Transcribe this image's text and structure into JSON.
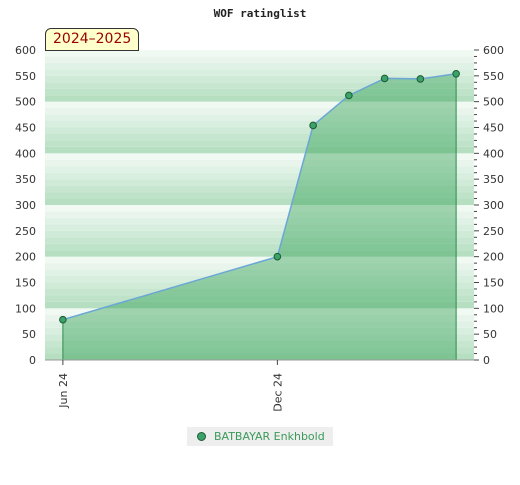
{
  "chart_data": {
    "type": "area",
    "title": "WOF ratinglist",
    "badge": "2024–2025",
    "y_ticks": [
      "0",
      "50",
      "100",
      "150",
      "200",
      "250",
      "300",
      "350",
      "400",
      "450",
      "500",
      "550",
      "600"
    ],
    "ylim": [
      0,
      600
    ],
    "x_ticks": [
      {
        "label": "Jun 24",
        "month": 0
      },
      {
        "label": "Dec 24",
        "month": 6
      }
    ],
    "xlim_months": [
      -0.5,
      11.5
    ],
    "series": [
      {
        "name": "BATBAYAR Enkhbold",
        "points": [
          {
            "month": 0,
            "value": 78
          },
          {
            "month": 6,
            "value": 200
          },
          {
            "month": 7,
            "value": 454
          },
          {
            "month": 8,
            "value": 512
          },
          {
            "month": 9,
            "value": 545
          },
          {
            "month": 10,
            "value": 544
          },
          {
            "month": 11,
            "value": 554
          }
        ]
      }
    ],
    "colors": {
      "band_light": "#e9f5ec",
      "band_dark": "#b6dfc2",
      "area_fill": "#3aa35c",
      "line": "#6aa6d6",
      "marker": "#3aa36a",
      "marker_stroke": "#1f5a35",
      "legend_text": "#3a9a5a"
    },
    "grid": true,
    "legend_position": "bottom"
  }
}
